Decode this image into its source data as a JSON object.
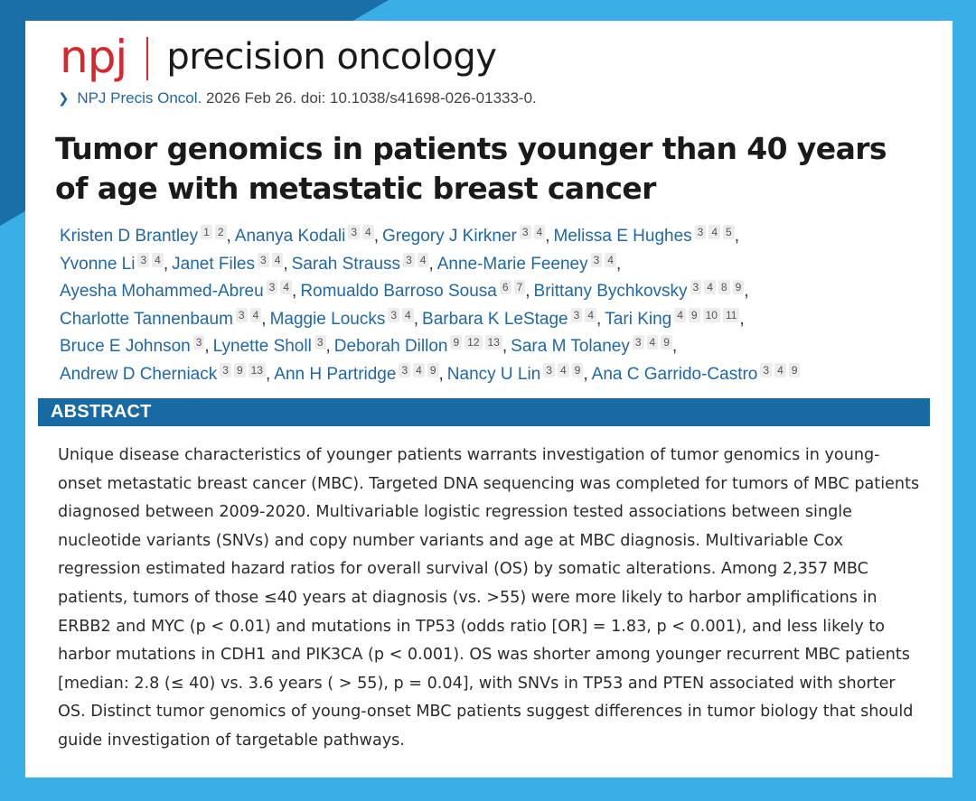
{
  "journal": {
    "brand_short": "npj",
    "brand_name": "precision oncology",
    "brand_color": "#d4272e"
  },
  "citation": {
    "journal_link": "NPJ Precis Oncol.",
    "details": "2026 Feb 26. doi: 10.1038/s41698-026-01333-0."
  },
  "article": {
    "title": "Tumor genomics in patients younger than 40 years of age with metastatic breast cancer"
  },
  "authors": [
    {
      "name": "Kristen D Brantley",
      "affiliations": [
        "1",
        "2"
      ],
      "line": 0
    },
    {
      "name": "Ananya Kodali",
      "affiliations": [
        "3",
        "4"
      ],
      "line": 0
    },
    {
      "name": "Gregory J Kirkner",
      "affiliations": [
        "3",
        "4"
      ],
      "line": 0
    },
    {
      "name": "Melissa E Hughes",
      "affiliations": [
        "3",
        "4",
        "5"
      ],
      "line": 0
    },
    {
      "name": "Yvonne Li",
      "affiliations": [
        "3",
        "4"
      ],
      "line": 1
    },
    {
      "name": "Janet Files",
      "affiliations": [
        "3",
        "4"
      ],
      "line": 1
    },
    {
      "name": "Sarah Strauss",
      "affiliations": [
        "3",
        "4"
      ],
      "line": 1
    },
    {
      "name": "Anne-Marie Feeney",
      "affiliations": [
        "3",
        "4"
      ],
      "line": 1
    },
    {
      "name": "Ayesha Mohammed-Abreu",
      "affiliations": [
        "3",
        "4"
      ],
      "line": 2
    },
    {
      "name": "Romualdo Barroso Sousa",
      "affiliations": [
        "6",
        "7"
      ],
      "line": 2
    },
    {
      "name": "Brittany Bychkovsky",
      "affiliations": [
        "3",
        "4",
        "8",
        "9"
      ],
      "line": 2
    },
    {
      "name": "Charlotte Tannenbaum",
      "affiliations": [
        "3",
        "4"
      ],
      "line": 3
    },
    {
      "name": "Maggie Loucks",
      "affiliations": [
        "3",
        "4"
      ],
      "line": 3
    },
    {
      "name": "Barbara K LeStage",
      "affiliations": [
        "3",
        "4"
      ],
      "line": 3
    },
    {
      "name": "Tari King",
      "affiliations": [
        "4",
        "9",
        "10",
        "11"
      ],
      "line": 3
    },
    {
      "name": "Bruce E Johnson",
      "affiliations": [
        "3"
      ],
      "line": 4
    },
    {
      "name": "Lynette Sholl",
      "affiliations": [
        "3"
      ],
      "line": 4
    },
    {
      "name": "Deborah Dillon",
      "affiliations": [
        "9",
        "12",
        "13"
      ],
      "line": 4
    },
    {
      "name": "Sara M Tolaney",
      "affiliations": [
        "3",
        "4",
        "9"
      ],
      "line": 4
    },
    {
      "name": "Andrew D Cherniack",
      "affiliations": [
        "3",
        "9",
        "13"
      ],
      "line": 5
    },
    {
      "name": "Ann H Partridge",
      "affiliations": [
        "3",
        "4",
        "9"
      ],
      "line": 5
    },
    {
      "name": "Nancy U Lin",
      "affiliations": [
        "3",
        "4",
        "9"
      ],
      "line": 5
    },
    {
      "name": "Ana C Garrido-Castro",
      "affiliations": [
        "3",
        "4",
        "9"
      ],
      "line": 5
    }
  ],
  "abstract": {
    "heading": "ABSTRACT",
    "text": "Unique disease characteristics of younger patients warrants investigation of tumor genomics in young-onset metastatic breast cancer (MBC). Targeted DNA sequencing was completed for tumors of MBC patients diagnosed between 2009-2020. Multivariable logistic regression tested associations between single nucleotide variants (SNVs) and copy number variants and age at MBC diagnosis. Multivariable Cox regression estimated hazard ratios for overall survival (OS) by somatic alterations. Among 2,357 MBC patients, tumors of those ≤40 years at diagnosis (vs. >55) were more likely to harbor amplifications in ERBB2 and MYC (p < 0.01) and mutations in TP53 (odds ratio [OR] = 1.83, p < 0.001), and less likely to harbor mutations in CDH1 and PIK3CA (p < 0.001). OS was shorter among younger recurrent MBC patients [median: 2.8 (≤ 40) vs. 3.6 years ( > 55), p = 0.04], with SNVs in TP53 and PTEN associated with shorter OS. Distinct tumor genomics of young-onset MBC patients suggest differences in tumor biology that should guide investigation of targetable pathways."
  },
  "colors": {
    "background": "#3aaee6",
    "background_dark": "#1a6fa8",
    "link": "#1f67a6",
    "abstract_bar": "#176aa3"
  }
}
